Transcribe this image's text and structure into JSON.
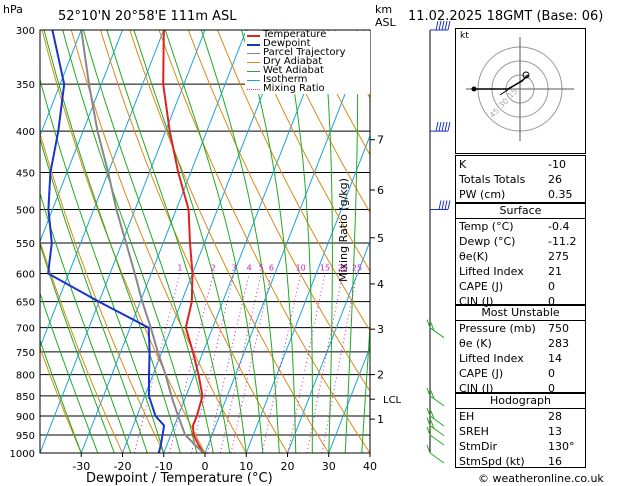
{
  "header": {
    "hpa_label": "hPa",
    "location": "52°10'N  20°58'E  111m  ASL",
    "km_label": "km",
    "asl_label": "ASL",
    "datetime": "11.02.2025  18GMT  (Base: 06)"
  },
  "legend": [
    {
      "label": "Temperature",
      "color": "#dd2222",
      "style": "solid"
    },
    {
      "label": "Dewpoint",
      "color": "#1a33cc",
      "style": "solid"
    },
    {
      "label": "Parcel Trajectory",
      "color": "#888888",
      "style": "solid"
    },
    {
      "label": "Dry Adiabat",
      "color": "#d98a1a",
      "style": "solid"
    },
    {
      "label": "Wet Adiabat",
      "color": "#22aa22",
      "style": "solid"
    },
    {
      "label": "Isotherm",
      "color": "#1aa3dd",
      "style": "solid"
    },
    {
      "label": "Mixing Ratio",
      "color": "#cc22cc",
      "style": "dotted"
    }
  ],
  "chart_data": {
    "type": "line",
    "title": "",
    "xlabel": "Dewpoint / Temperature (°C)",
    "ylabel": "",
    "y2label": "Mixing Ratio (g/kg)",
    "xlim": [
      -40,
      40
    ],
    "ylim_hpa": [
      1000,
      300
    ],
    "x_ticks": [
      -30,
      -20,
      -10,
      0,
      10,
      20,
      30,
      40
    ],
    "pressure_levels": [
      300,
      350,
      400,
      450,
      500,
      550,
      600,
      650,
      700,
      750,
      800,
      850,
      900,
      950,
      1000
    ],
    "km_ticks": [
      {
        "km": "1",
        "p": 908
      },
      {
        "km": "2",
        "p": 800
      },
      {
        "km": "3",
        "p": 703
      },
      {
        "km": "4",
        "p": 618
      },
      {
        "km": "5",
        "p": 542
      },
      {
        "km": "6",
        "p": 473
      },
      {
        "km": "7",
        "p": 410
      }
    ],
    "lcl": {
      "label": "LCL",
      "p": 858
    },
    "mixing_ratio_labels": [
      "1",
      "2",
      "3",
      "4",
      "5",
      "6",
      "10",
      "15",
      "20",
      "25"
    ],
    "mixing_ratio_values": [
      1,
      2,
      3,
      4,
      5,
      6,
      10,
      15,
      20,
      25
    ],
    "series": [
      {
        "name": "Temperature",
        "color": "#dd2222",
        "points": [
          [
            1000,
            -0.4
          ],
          [
            975,
            -2.5
          ],
          [
            950,
            -4.5
          ],
          [
            925,
            -5.5
          ],
          [
            900,
            -5.5
          ],
          [
            850,
            -6
          ],
          [
            800,
            -9
          ],
          [
            750,
            -12.5
          ],
          [
            700,
            -16.5
          ],
          [
            650,
            -17.5
          ],
          [
            600,
            -20
          ],
          [
            550,
            -23.5
          ],
          [
            500,
            -27
          ],
          [
            450,
            -33
          ],
          [
            400,
            -39
          ],
          [
            350,
            -45
          ],
          [
            300,
            -50
          ]
        ]
      },
      {
        "name": "Dewpoint",
        "color": "#1a33cc",
        "points": [
          [
            1000,
            -11.2
          ],
          [
            975,
            -11.5
          ],
          [
            950,
            -12
          ],
          [
            925,
            -12.5
          ],
          [
            900,
            -15.5
          ],
          [
            850,
            -19
          ],
          [
            800,
            -21
          ],
          [
            750,
            -23
          ],
          [
            700,
            -25.5
          ],
          [
            650,
            -40
          ],
          [
            600,
            -55
          ],
          [
            550,
            -57
          ],
          [
            500,
            -61
          ],
          [
            450,
            -64
          ],
          [
            400,
            -66
          ],
          [
            350,
            -69
          ],
          [
            300,
            -77
          ]
        ]
      },
      {
        "name": "Parcel Trajectory",
        "color": "#888888",
        "points": [
          [
            1000,
            -0.4
          ],
          [
            950,
            -6.5
          ],
          [
            900,
            -10
          ],
          [
            858,
            -13
          ],
          [
            800,
            -17
          ],
          [
            750,
            -21
          ],
          [
            700,
            -25
          ],
          [
            650,
            -29.5
          ],
          [
            600,
            -34
          ],
          [
            550,
            -39
          ],
          [
            500,
            -44.5
          ],
          [
            450,
            -50
          ],
          [
            400,
            -56.5
          ],
          [
            350,
            -63
          ],
          [
            300,
            -70
          ]
        ]
      }
    ],
    "wind_barbs": [
      {
        "p": 300,
        "speed_kt": 55
      },
      {
        "p": 400,
        "speed_kt": 50
      },
      {
        "p": 500,
        "speed_kt": 40
      },
      {
        "p": 700,
        "speed_kt": 25
      },
      {
        "p": 850,
        "speed_kt": 18
      },
      {
        "p": 900,
        "speed_kt": 16
      },
      {
        "p": 925,
        "speed_kt": 15
      },
      {
        "p": 950,
        "speed_kt": 14
      },
      {
        "p": 1000,
        "speed_kt": 10
      }
    ]
  },
  "hodograph": {
    "title": "kt",
    "ring_labels": [
      "15",
      "30",
      "45"
    ]
  },
  "indices": [
    {
      "k": "K",
      "v": "-10"
    },
    {
      "k": "Totals Totals",
      "v": "26"
    },
    {
      "k": "PW (cm)",
      "v": "0.35"
    }
  ],
  "surface": {
    "title": "Surface",
    "rows": [
      {
        "k": "Temp (°C)",
        "v": "-0.4"
      },
      {
        "k": "Dewp (°C)",
        "v": "-11.2"
      },
      {
        "k": "θe(K)",
        "v": "275"
      },
      {
        "k": "Lifted Index",
        "v": "21"
      },
      {
        "k": "CAPE (J)",
        "v": "0"
      },
      {
        "k": "CIN (J)",
        "v": "0"
      }
    ]
  },
  "most_unstable": {
    "title": "Most Unstable",
    "rows": [
      {
        "k": "Pressure (mb)",
        "v": "750"
      },
      {
        "k": "θe (K)",
        "v": "283"
      },
      {
        "k": "Lifted Index",
        "v": "14"
      },
      {
        "k": "CAPE (J)",
        "v": "0"
      },
      {
        "k": "CIN (J)",
        "v": "0"
      }
    ]
  },
  "hodograph_table": {
    "title": "Hodograph",
    "rows": [
      {
        "k": "EH",
        "v": "28"
      },
      {
        "k": "SREH",
        "v": "13"
      },
      {
        "k": "StmDir",
        "v": "130°"
      },
      {
        "k": "StmSpd (kt)",
        "v": "16"
      }
    ]
  },
  "footer": {
    "copyright": "© weatheronline.co.uk"
  }
}
